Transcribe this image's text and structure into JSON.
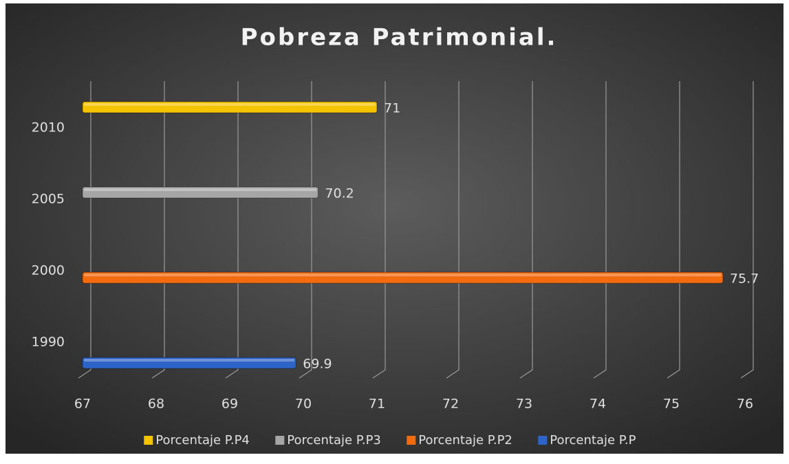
{
  "chart_data": {
    "type": "bar",
    "orientation": "horizontal",
    "title": "Pobreza Patrimonial.",
    "categories": [
      "1990",
      "2000",
      "2005",
      "2010"
    ],
    "series": [
      {
        "name": "Porcentaje P.P4",
        "color": "#f5c400",
        "values": [
          null,
          null,
          null,
          71
        ]
      },
      {
        "name": "Porcentaje P.P3",
        "color": "#a6a6a6",
        "values": [
          null,
          null,
          70.2,
          null
        ]
      },
      {
        "name": "Porcentaje P.P2",
        "color": "#f26b0f",
        "values": [
          null,
          75.7,
          null,
          null
        ]
      },
      {
        "name": "Porcentaje P.P",
        "color": "#2e64c8",
        "values": [
          69.9,
          null,
          null,
          null
        ]
      }
    ],
    "xlim": [
      67,
      76
    ],
    "xticks": [
      67,
      68,
      69,
      70,
      71,
      72,
      73,
      74,
      75,
      76
    ],
    "grid": true,
    "legend": "bottom"
  }
}
